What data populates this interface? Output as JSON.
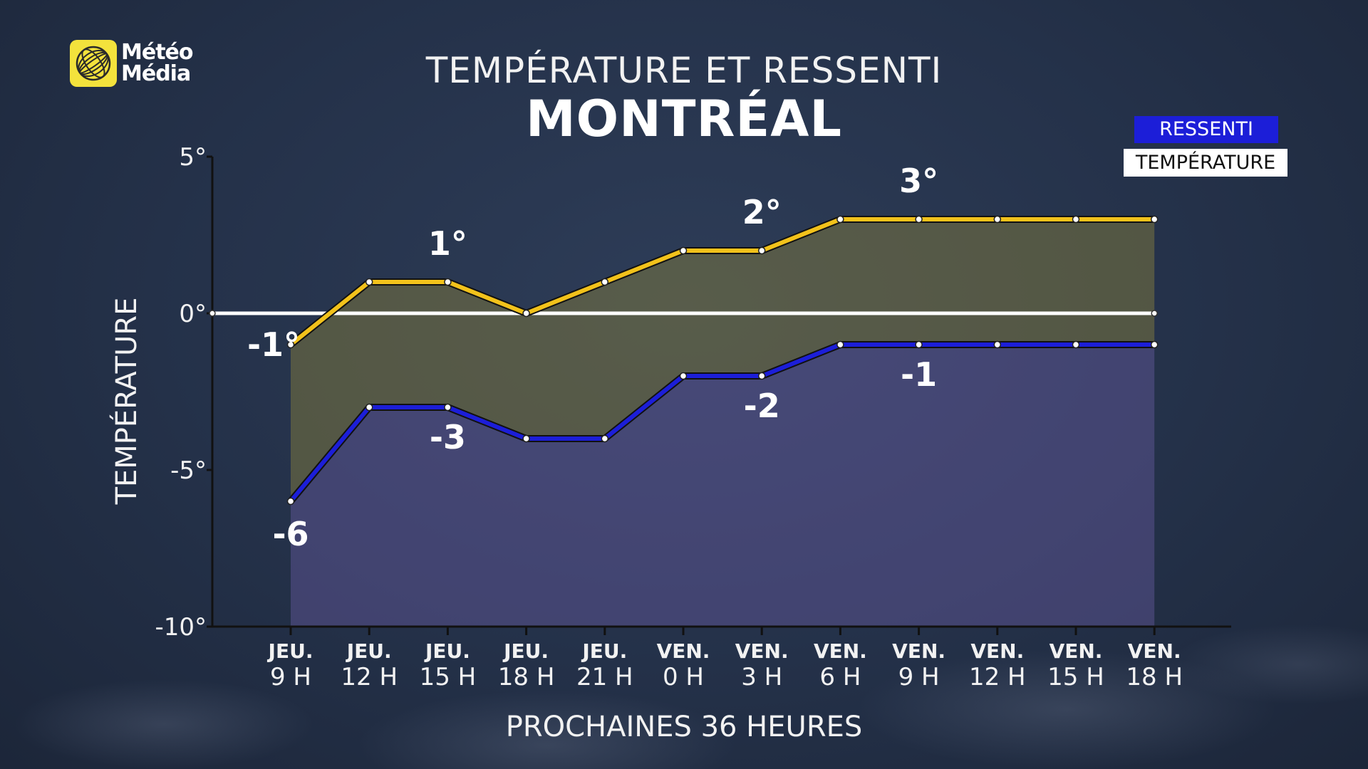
{
  "header": {
    "logo_line1": "Météo",
    "logo_line2": "Média",
    "title": "TEMPÉRATURE ET RESSENTI",
    "subtitle": "MONTRÉAL"
  },
  "legend": {
    "ressenti": "RESSENTI",
    "temperature": "TEMPÉRATURE"
  },
  "colors": {
    "temperature": "#f2c21b",
    "ressenti": "#1c1ed8",
    "zero_line": "#ffffff",
    "logo": "#f3e23c"
  },
  "chart_data": {
    "type": "line",
    "title": "TEMPÉRATURE ET RESSENTI",
    "subtitle": "MONTRÉAL",
    "xlabel": "PROCHAINES 36 HEURES",
    "ylabel": "TEMPÉRATURE",
    "ylim": [
      -10,
      5
    ],
    "y_ticks": [
      "5°",
      "0°",
      "-5°",
      "-10°"
    ],
    "y_tick_values": [
      5,
      0,
      -5,
      -10
    ],
    "categories_day": [
      "JEU.",
      "JEU.",
      "JEU.",
      "JEU.",
      "JEU.",
      "VEN.",
      "VEN.",
      "VEN.",
      "VEN.",
      "VEN.",
      "VEN.",
      "VEN."
    ],
    "categories_hour": [
      "9 H",
      "12 H",
      "15 H",
      "18 H",
      "21 H",
      "0 H",
      "3 H",
      "6 H",
      "9 H",
      "12 H",
      "15 H",
      "18 H"
    ],
    "series": [
      {
        "name": "TEMPÉRATURE",
        "values": [
          -1,
          1,
          1,
          0,
          1,
          2,
          2,
          3,
          3,
          3,
          3,
          3
        ]
      },
      {
        "name": "RESSENTI",
        "values": [
          -6,
          -3,
          -3,
          -4,
          -4,
          -2,
          -2,
          -1,
          -1,
          -1,
          -1,
          -1
        ]
      }
    ],
    "annotations": [
      {
        "series": "TEMPÉRATURE",
        "index": 0,
        "text": "-1°"
      },
      {
        "series": "TEMPÉRATURE",
        "index": 2,
        "text": "1°"
      },
      {
        "series": "TEMPÉRATURE",
        "index": 6,
        "text": "2°"
      },
      {
        "series": "TEMPÉRATURE",
        "index": 8,
        "text": "3°"
      },
      {
        "series": "RESSENTI",
        "index": 0,
        "text": "-6"
      },
      {
        "series": "RESSENTI",
        "index": 2,
        "text": "-3"
      },
      {
        "series": "RESSENTI",
        "index": 6,
        "text": "-2"
      },
      {
        "series": "RESSENTI",
        "index": 8,
        "text": "-1"
      }
    ],
    "grid": false,
    "legend_position": "top-right"
  }
}
